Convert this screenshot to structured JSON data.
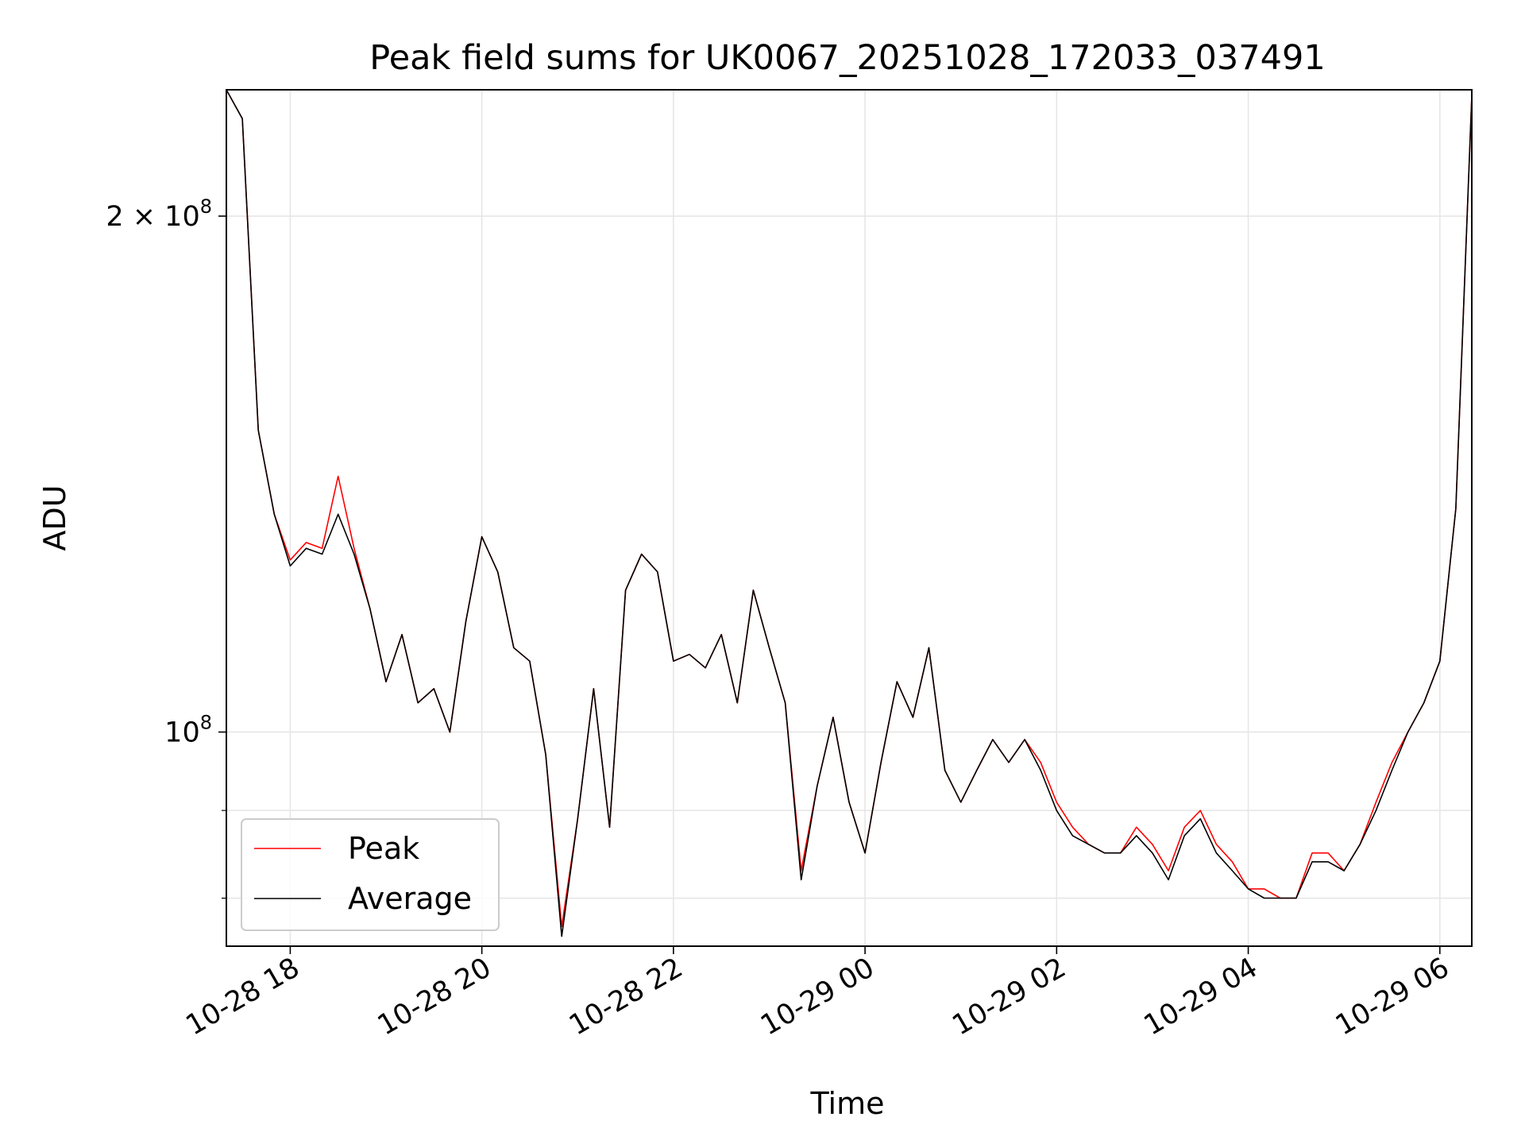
{
  "chart_data": {
    "type": "line",
    "title": "Peak field sums for UK0067_20251028_172033_037491",
    "xlabel": "Time",
    "ylabel": "ADU",
    "xlim": [
      "2025-10-28 17:20",
      "2025-10-29 06:20"
    ],
    "ylim": [
      75000000,
      237000000
    ],
    "yscale": "log",
    "grid": true,
    "legend_position": "lower-left",
    "x_ticks": [
      "10-28 18",
      "10-28 20",
      "10-28 22",
      "10-29 00",
      "10-29 02",
      "10-29 04",
      "10-29 06"
    ],
    "y_ticks": [
      {
        "value": 200000000,
        "mantissa": "2",
        "exponent": "8"
      },
      {
        "value": 100000000,
        "mantissa": "",
        "exponent": "8"
      }
    ],
    "y_minor_ticks": [
      80000000,
      90000000
    ],
    "x_times": [
      "2025-10-28 17:20",
      "2025-10-28 17:30",
      "2025-10-28 17:40",
      "2025-10-28 17:50",
      "2025-10-28 18:00",
      "2025-10-28 18:10",
      "2025-10-28 18:20",
      "2025-10-28 18:30",
      "2025-10-28 18:40",
      "2025-10-28 18:50",
      "2025-10-28 19:00",
      "2025-10-28 19:10",
      "2025-10-28 19:20",
      "2025-10-28 19:30",
      "2025-10-28 19:40",
      "2025-10-28 19:50",
      "2025-10-28 20:00",
      "2025-10-28 20:10",
      "2025-10-28 20:20",
      "2025-10-28 20:30",
      "2025-10-28 20:40",
      "2025-10-28 20:50",
      "2025-10-28 21:00",
      "2025-10-28 21:10",
      "2025-10-28 21:20",
      "2025-10-28 21:30",
      "2025-10-28 21:40",
      "2025-10-28 21:50",
      "2025-10-28 22:00",
      "2025-10-28 22:10",
      "2025-10-28 22:20",
      "2025-10-28 22:30",
      "2025-10-28 22:40",
      "2025-10-28 22:50",
      "2025-10-28 23:00",
      "2025-10-28 23:10",
      "2025-10-28 23:20",
      "2025-10-28 23:30",
      "2025-10-28 23:40",
      "2025-10-28 23:50",
      "2025-10-29 00:00",
      "2025-10-29 00:10",
      "2025-10-29 00:20",
      "2025-10-29 00:30",
      "2025-10-29 00:40",
      "2025-10-29 00:50",
      "2025-10-29 01:00",
      "2025-10-29 01:10",
      "2025-10-29 01:20",
      "2025-10-29 01:30",
      "2025-10-29 01:40",
      "2025-10-29 01:50",
      "2025-10-29 02:00",
      "2025-10-29 02:10",
      "2025-10-29 02:20",
      "2025-10-29 02:30",
      "2025-10-29 02:40",
      "2025-10-29 02:50",
      "2025-10-29 03:00",
      "2025-10-29 03:10",
      "2025-10-29 03:20",
      "2025-10-29 03:30",
      "2025-10-29 03:40",
      "2025-10-29 03:50",
      "2025-10-29 04:00",
      "2025-10-29 04:10",
      "2025-10-29 04:20",
      "2025-10-29 04:30",
      "2025-10-29 04:40",
      "2025-10-29 04:50",
      "2025-10-29 05:00",
      "2025-10-29 05:10",
      "2025-10-29 05:20",
      "2025-10-29 05:30",
      "2025-10-29 05:40",
      "2025-10-29 05:50",
      "2025-10-29 06:00",
      "2025-10-29 06:10",
      "2025-10-29 06:20"
    ],
    "series": [
      {
        "name": "Peak",
        "color": "#ff0000",
        "values": [
          237000000,
          228000000,
          150000000,
          134000000,
          126000000,
          129000000,
          128000000,
          141000000,
          128000000,
          118000000,
          107000000,
          114000000,
          104000000,
          106000000,
          100000000,
          116000000,
          130000000,
          124000000,
          112000000,
          110000000,
          97000000,
          77000000,
          89000000,
          106000000,
          88000000,
          121000000,
          127000000,
          124000000,
          110000000,
          111000000,
          109000000,
          114000000,
          104000000,
          121000000,
          112000000,
          104000000,
          83000000,
          93000000,
          102000000,
          91000000,
          85000000,
          96000000,
          107000000,
          102000000,
          112000000,
          95000000,
          91000000,
          95000000,
          99000000,
          96000000,
          99000000,
          96000000,
          91000000,
          88000000,
          86000000,
          85000000,
          85000000,
          88000000,
          86000000,
          83000000,
          88000000,
          90000000,
          86000000,
          84000000,
          81000000,
          81000000,
          80000000,
          80000000,
          85000000,
          85000000,
          83000000,
          86000000,
          91000000,
          96000000,
          100000000,
          104000000,
          110000000,
          135000000,
          235000000
        ]
      },
      {
        "name": "Average",
        "color": "#000000",
        "values": [
          237000000,
          228000000,
          150000000,
          134000000,
          125000000,
          128000000,
          127000000,
          134000000,
          127000000,
          118000000,
          107000000,
          114000000,
          104000000,
          106000000,
          100000000,
          116000000,
          130000000,
          124000000,
          112000000,
          110000000,
          97000000,
          76000000,
          89000000,
          106000000,
          88000000,
          121000000,
          127000000,
          124000000,
          110000000,
          111000000,
          109000000,
          114000000,
          104000000,
          121000000,
          112000000,
          104000000,
          82000000,
          93000000,
          102000000,
          91000000,
          85000000,
          96000000,
          107000000,
          102000000,
          112000000,
          95000000,
          91000000,
          95000000,
          99000000,
          96000000,
          99000000,
          95000000,
          90000000,
          87000000,
          86000000,
          85000000,
          85000000,
          87000000,
          85000000,
          82000000,
          87000000,
          89000000,
          85000000,
          83000000,
          81000000,
          80000000,
          80000000,
          80000000,
          84000000,
          84000000,
          83000000,
          86000000,
          90000000,
          95000000,
          100000000,
          104000000,
          110000000,
          135000000,
          235000000
        ]
      }
    ]
  }
}
